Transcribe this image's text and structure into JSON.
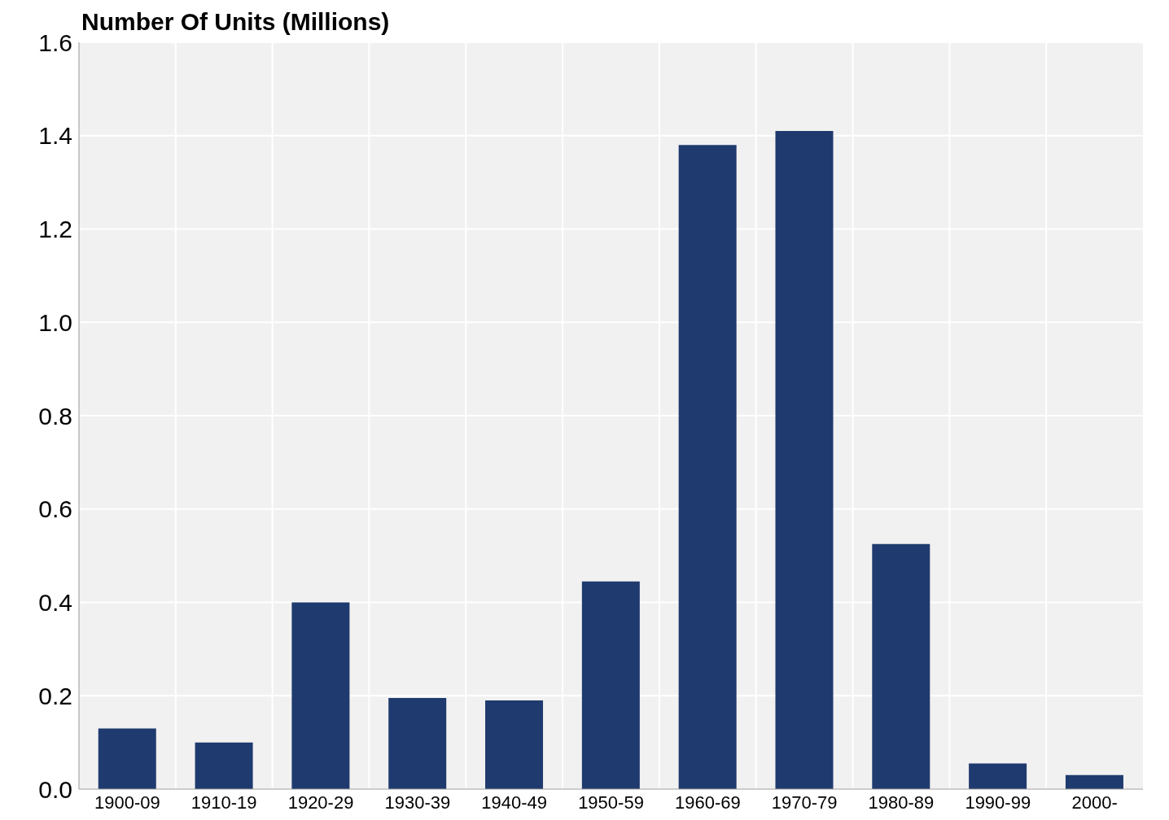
{
  "chart_data": {
    "type": "bar",
    "title": "Number Of Units (Millions)",
    "categories": [
      "1900-09",
      "1910-19",
      "1920-29",
      "1930-39",
      "1940-49",
      "1950-59",
      "1960-69",
      "1970-79",
      "1980-89",
      "1990-99",
      "2000-"
    ],
    "values": [
      0.13,
      0.1,
      0.4,
      0.195,
      0.19,
      0.445,
      1.38,
      1.41,
      0.525,
      0.055,
      0.03
    ],
    "color": "#1f3a6e",
    "ylim": [
      0,
      1.6
    ],
    "yticks": [
      {
        "value": 0,
        "label": "0.0"
      },
      0.2,
      0.4,
      0.6,
      0.8,
      {
        "value": 1,
        "label": "1.0"
      },
      1.2,
      1.4,
      1.6
    ],
    "grid": true
  }
}
